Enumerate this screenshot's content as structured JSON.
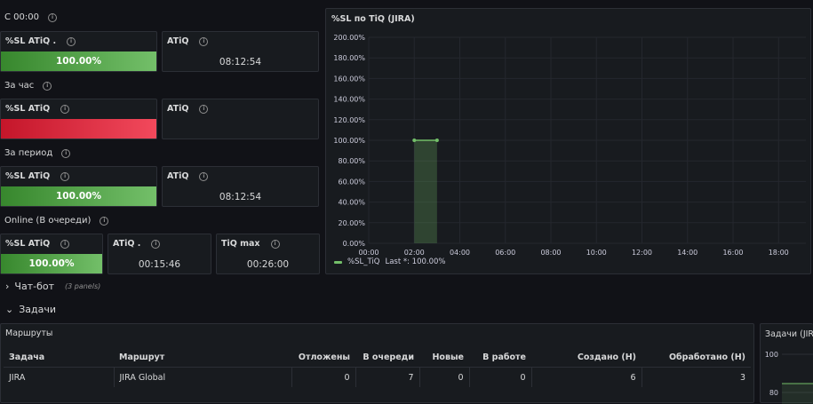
{
  "rows": {
    "since_midnight": "С 00:00",
    "per_hour": "За час",
    "per_period": "За период",
    "online": "Online (В очереди)",
    "chatbot": "Чат-бот",
    "chatbot_panels": "(3 panels)",
    "tasks": "Задачи"
  },
  "stats": {
    "since_midnight": {
      "sl_title": "%SL ATiQ .",
      "sl_value": "100.00%",
      "sl_fill": 1.0,
      "atiq_title": "ATiQ",
      "atiq_value": "08:12:54"
    },
    "per_hour": {
      "sl_title": "%SL ATiQ",
      "sl_value": "",
      "atiq_title": "ATiQ",
      "atiq_value": ""
    },
    "per_period": {
      "sl_title": "%SL ATiQ",
      "sl_value": "100.00%",
      "sl_fill": 1.0,
      "atiq_title": "ATiQ",
      "atiq_value": "08:12:54"
    },
    "online": {
      "sl_title": "%SL ATiQ",
      "sl_value": "100.00%",
      "sl_fill": 1.0,
      "atiq_title": "ATiQ .",
      "atiq_value": "00:15:46",
      "tiqmax_title": "TiQ max",
      "tiqmax_value": "00:26:00"
    }
  },
  "chart_panel": {
    "title": "%SL по TiQ (JIRA)",
    "legend": "%SL_TiQ",
    "legend_stat": "Last *: 100.00%",
    "color": "#73bf69"
  },
  "chart_data": {
    "type": "area",
    "title": "%SL по TiQ (JIRA)",
    "x": [
      "02:00",
      "03:00"
    ],
    "series": [
      {
        "name": "%SL_TiQ",
        "values": [
          100,
          100
        ]
      }
    ],
    "xticks": [
      "00:00",
      "02:00",
      "04:00",
      "06:00",
      "08:00",
      "10:00",
      "12:00",
      "14:00",
      "16:00",
      "18:00"
    ],
    "yticks": [
      "0.00%",
      "20.00%",
      "40.00%",
      "60.00%",
      "80.00%",
      "100.00%",
      "120.00%",
      "140.00%",
      "160.00%",
      "180.00%",
      "200.00%"
    ],
    "ylim": [
      0,
      200
    ],
    "xlim_hours": [
      0,
      19.2
    ],
    "grid": true,
    "legend_position": "bottom-left"
  },
  "routes": {
    "title": "Маршруты",
    "columns": [
      "Задача",
      "Маршрут",
      "Отложены",
      "В очереди",
      "Новые",
      "В работе",
      "Создано (Н)",
      "Обработано (Н)"
    ],
    "rows": [
      [
        "JIRA",
        "JIRA Global",
        "0",
        "7",
        "0",
        "0",
        "6",
        "3"
      ]
    ]
  },
  "tasks_panel": {
    "title": "Задачи (JIR",
    "yticks": [
      "100",
      "80"
    ]
  }
}
